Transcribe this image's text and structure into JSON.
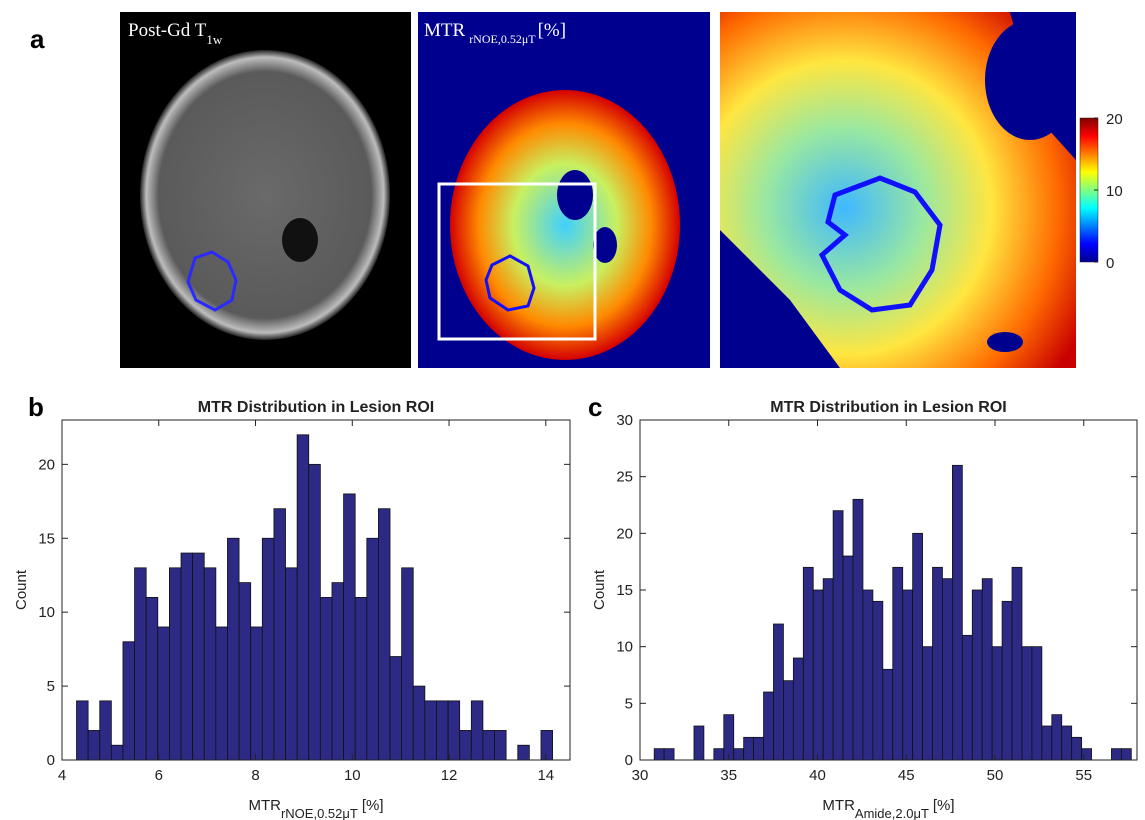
{
  "panel_labels": [
    "a",
    "b",
    "c"
  ],
  "images": [
    {
      "label_main": "Post-Gd T",
      "label_sub": "1w"
    },
    {
      "label_main": "MTR",
      "label_sub": "rNOE,0.52μT",
      "label_suffix": "[%]"
    }
  ],
  "colorbar": {
    "lim": [
      0,
      20
    ],
    "ticks": [
      0,
      10,
      20
    ]
  },
  "chart_data": [
    {
      "type": "histogram",
      "title": "MTR Distribution in Lesion ROI",
      "xlabel": {
        "main": "MTR",
        "sub": "rNOE,0.52μT",
        "unit": "[%]"
      },
      "ylabel": "Count",
      "color": "#2c2a85",
      "bins": [
        4.3,
        4.54,
        4.78,
        5.02,
        5.26,
        5.5,
        5.74,
        5.98,
        6.22,
        6.46,
        6.7,
        6.94,
        7.18,
        7.42,
        7.66,
        7.9,
        8.14,
        8.38,
        8.62,
        8.86,
        9.1,
        9.34,
        9.58,
        9.82,
        10.06,
        10.3,
        10.54,
        10.78,
        11.02,
        11.26,
        11.5,
        11.74,
        11.98,
        12.22,
        12.46,
        12.7,
        12.94,
        13.18,
        13.42,
        13.66,
        13.9,
        14.14
      ],
      "values": [
        4,
        2,
        4,
        1,
        8,
        13,
        11,
        9,
        13,
        14,
        14,
        13,
        9,
        15,
        12,
        9,
        15,
        17,
        13,
        22,
        20,
        11,
        12,
        18,
        11,
        15,
        17,
        7,
        13,
        5,
        4,
        4,
        4,
        2,
        4,
        2,
        2,
        0,
        1,
        0,
        2
      ],
      "xlim": [
        4,
        14.5
      ],
      "xticks": [
        4,
        6,
        8,
        10,
        12,
        14
      ],
      "ylim": [
        0,
        23
      ],
      "yticks": [
        0,
        5,
        10,
        15,
        20
      ]
    },
    {
      "type": "histogram",
      "title": "MTR Distribution in Lesion ROI",
      "xlabel": {
        "main": "MTR",
        "sub": "Amide,2.0μT",
        "unit": "[%]"
      },
      "ylabel": "Count",
      "color": "#2c2a85",
      "bins": [
        30.8,
        31.36,
        31.92,
        32.48,
        33.04,
        33.6,
        34.16,
        34.72,
        35.28,
        35.84,
        36.4,
        36.96,
        37.52,
        38.08,
        38.64,
        39.2,
        39.76,
        40.32,
        40.88,
        41.44,
        42.0,
        42.56,
        43.12,
        43.68,
        44.24,
        44.8,
        45.36,
        45.92,
        46.48,
        47.04,
        47.6,
        48.16,
        48.72,
        49.28,
        49.84,
        50.4,
        50.96,
        51.52,
        52.08,
        52.64,
        53.2,
        53.76,
        54.32,
        54.88,
        55.44,
        56.0,
        56.56,
        57.12,
        57.68
      ],
      "values": [
        1,
        1,
        0,
        0,
        3,
        0,
        1,
        4,
        1,
        2,
        2,
        6,
        12,
        7,
        9,
        17,
        15,
        16,
        22,
        18,
        23,
        15,
        14,
        8,
        17,
        15,
        20,
        10,
        17,
        16,
        26,
        11,
        15,
        16,
        10,
        14,
        17,
        10,
        10,
        3,
        4,
        3,
        2,
        1,
        0,
        0,
        1,
        1
      ],
      "xlim": [
        30,
        58
      ],
      "xticks": [
        30,
        35,
        40,
        45,
        50,
        55
      ],
      "ylim": [
        0,
        30
      ],
      "yticks": [
        0,
        5,
        10,
        15,
        20,
        25,
        30
      ]
    }
  ]
}
